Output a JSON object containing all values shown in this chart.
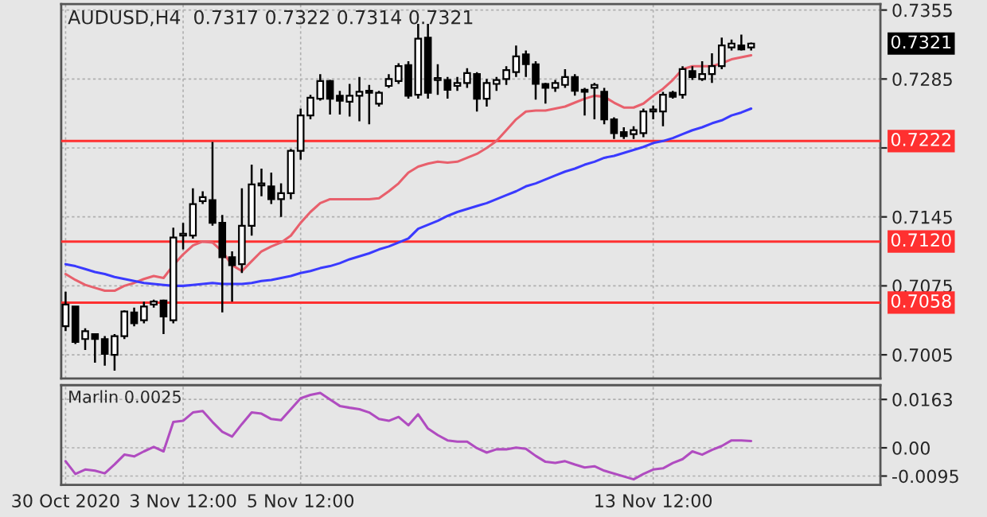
{
  "chart_data": [
    {
      "type": "candlestick",
      "title": "AUDUSD,H4  0.7317 0.7322 0.7314 0.7321",
      "categories": [
        null,
        null,
        null,
        null,
        null,
        null,
        null,
        null,
        null,
        null,
        null,
        null,
        null,
        null,
        null,
        null,
        null,
        null,
        null,
        null,
        null,
        null,
        null,
        null,
        null,
        null,
        null,
        null,
        null,
        null,
        null,
        null,
        null,
        null,
        null,
        null,
        null,
        null,
        null,
        null,
        null,
        null,
        null,
        null,
        null,
        null,
        null,
        null,
        null,
        null,
        null,
        null,
        null,
        null,
        null,
        null,
        null,
        null,
        null,
        null,
        null,
        null,
        null,
        null,
        null,
        null,
        null,
        null,
        null,
        null,
        null
      ],
      "ohlc": [
        [
          0.7034,
          0.7069,
          0.7029,
          0.7056
        ],
        [
          0.7054,
          0.7054,
          0.7016,
          0.7018
        ],
        [
          0.7021,
          0.7032,
          0.701,
          0.7029
        ],
        [
          0.7026,
          0.7026,
          0.6997,
          0.7021
        ],
        [
          0.7021,
          0.7024,
          0.6994,
          0.7006
        ],
        [
          0.7005,
          0.7026,
          0.6989,
          0.7024
        ],
        [
          0.7024,
          0.705,
          0.7021,
          0.7049
        ],
        [
          0.7048,
          0.7053,
          0.7034,
          0.7037
        ],
        [
          0.704,
          0.7059,
          0.7037,
          0.7054
        ],
        [
          0.7056,
          0.7061,
          0.7053,
          0.7059
        ],
        [
          0.706,
          0.7061,
          0.7026,
          0.7044
        ],
        [
          0.704,
          0.7134,
          0.7037,
          0.7124
        ],
        [
          0.7126,
          0.7139,
          0.7112,
          0.7128
        ],
        [
          0.7126,
          0.7174,
          0.7123,
          0.7158
        ],
        [
          0.7161,
          0.7171,
          0.7158,
          0.7165
        ],
        [
          0.7162,
          0.7221,
          0.7136,
          0.7139
        ],
        [
          0.7139,
          0.7147,
          0.7048,
          0.7104
        ],
        [
          0.7104,
          0.711,
          0.7059,
          0.7096
        ],
        [
          0.7097,
          0.7174,
          0.7088,
          0.7136
        ],
        [
          0.7136,
          0.7198,
          0.7126,
          0.7178
        ],
        [
          0.7177,
          0.7194,
          0.7166,
          0.7179
        ],
        [
          0.7176,
          0.719,
          0.7158,
          0.7163
        ],
        [
          0.7163,
          0.7179,
          0.7145,
          0.7169
        ],
        [
          0.7169,
          0.7214,
          0.7163,
          0.7212
        ],
        [
          0.7212,
          0.7255,
          0.7203,
          0.7248
        ],
        [
          0.7248,
          0.7269,
          0.7244,
          0.7266
        ],
        [
          0.7265,
          0.729,
          0.7263,
          0.7283
        ],
        [
          0.7283,
          0.7284,
          0.7249,
          0.7265
        ],
        [
          0.7268,
          0.7273,
          0.7249,
          0.7263
        ],
        [
          0.7262,
          0.728,
          0.7247,
          0.7268
        ],
        [
          0.7268,
          0.7287,
          0.7242,
          0.7272
        ],
        [
          0.7273,
          0.7279,
          0.7239,
          0.7271
        ],
        [
          0.726,
          0.7273,
          0.7257,
          0.7271
        ],
        [
          0.7278,
          0.729,
          0.7276,
          0.7285
        ],
        [
          0.7283,
          0.7301,
          0.728,
          0.7298
        ],
        [
          0.7299,
          0.7303,
          0.7265,
          0.7268
        ],
        [
          0.7269,
          0.7341,
          0.7265,
          0.7326
        ],
        [
          0.7327,
          0.7341,
          0.7265,
          0.7271
        ],
        [
          0.7284,
          0.73,
          0.7269,
          0.7286
        ],
        [
          0.7284,
          0.7287,
          0.7265,
          0.7274
        ],
        [
          0.7278,
          0.7287,
          0.7273,
          0.7281
        ],
        [
          0.7281,
          0.7296,
          0.7276,
          0.7291
        ],
        [
          0.729,
          0.7292,
          0.7252,
          0.7265
        ],
        [
          0.7265,
          0.7285,
          0.7257,
          0.7281
        ],
        [
          0.728,
          0.7287,
          0.7273,
          0.7284
        ],
        [
          0.7285,
          0.7298,
          0.7279,
          0.7294
        ],
        [
          0.7292,
          0.7319,
          0.7287,
          0.7308
        ],
        [
          0.731,
          0.7314,
          0.7287,
          0.73
        ],
        [
          0.73,
          0.7303,
          0.7264,
          0.728
        ],
        [
          0.728,
          0.7281,
          0.726,
          0.7276
        ],
        [
          0.7276,
          0.7284,
          0.7272,
          0.7281
        ],
        [
          0.7279,
          0.7295,
          0.7276,
          0.7287
        ],
        [
          0.7287,
          0.729,
          0.7268,
          0.7273
        ],
        [
          0.7274,
          0.7276,
          0.7248,
          0.7272
        ],
        [
          0.7276,
          0.7281,
          0.7244,
          0.7279
        ],
        [
          0.7272,
          0.7276,
          0.7239,
          0.7244
        ],
        [
          0.7244,
          0.7246,
          0.7224,
          0.723
        ],
        [
          0.7231,
          0.7236,
          0.7224,
          0.7227
        ],
        [
          0.7229,
          0.7237,
          0.7224,
          0.7233
        ],
        [
          0.723,
          0.7255,
          0.7226,
          0.7252
        ],
        [
          0.7252,
          0.7258,
          0.7244,
          0.7254
        ],
        [
          0.7252,
          0.7272,
          0.7237,
          0.7269
        ],
        [
          0.7271,
          0.7273,
          0.7265,
          0.7267
        ],
        [
          0.7269,
          0.7298,
          0.7265,
          0.7295
        ],
        [
          0.7293,
          0.7298,
          0.7284,
          0.7287
        ],
        [
          0.7285,
          0.7303,
          0.7283,
          0.729
        ],
        [
          0.729,
          0.7311,
          0.7281,
          0.7298
        ],
        [
          0.7298,
          0.7327,
          0.7295,
          0.7319
        ],
        [
          0.7317,
          0.7325,
          0.7314,
          0.7321
        ],
        [
          0.7319,
          0.733,
          0.7314,
          0.7315
        ],
        [
          0.7317,
          0.7322,
          0.7314,
          0.7321
        ]
      ],
      "series": [
        {
          "type": "line",
          "color": "#e8606c",
          "values": [
            0.7087,
            0.7081,
            0.7076,
            0.7073,
            0.707,
            0.707,
            0.7075,
            0.7078,
            0.7082,
            0.7085,
            0.7083,
            0.7096,
            0.7107,
            0.7116,
            0.712,
            0.7119,
            0.711,
            0.7096,
            0.709,
            0.71,
            0.711,
            0.7115,
            0.7119,
            0.7126,
            0.7139,
            0.715,
            0.7159,
            0.7163,
            0.7163,
            0.7163,
            0.7163,
            0.7163,
            0.7164,
            0.7171,
            0.7179,
            0.719,
            0.7196,
            0.7199,
            0.7201,
            0.72,
            0.7201,
            0.7205,
            0.7209,
            0.7215,
            0.7222,
            0.7233,
            0.7244,
            0.7252,
            0.7253,
            0.7253,
            0.7255,
            0.7257,
            0.7261,
            0.7265,
            0.7268,
            0.7267,
            0.7261,
            0.7256,
            0.7256,
            0.726,
            0.7268,
            0.7275,
            0.7284,
            0.7295,
            0.7298,
            0.7298,
            0.7298,
            0.7301,
            0.7305,
            0.7307,
            0.7309
          ]
        },
        {
          "type": "line",
          "color": "#3a3aff",
          "values": [
            0.7097,
            0.7095,
            0.7092,
            0.7089,
            0.7087,
            0.7084,
            0.7082,
            0.708,
            0.7078,
            0.7077,
            0.7076,
            0.7075,
            0.7075,
            0.7076,
            0.7077,
            0.7078,
            0.7077,
            0.7077,
            0.7077,
            0.7078,
            0.708,
            0.7081,
            0.7083,
            0.7085,
            0.7088,
            0.709,
            0.7093,
            0.7095,
            0.7098,
            0.7102,
            0.7105,
            0.7108,
            0.7112,
            0.7115,
            0.7119,
            0.7123,
            0.7133,
            0.7137,
            0.7141,
            0.7146,
            0.715,
            0.7153,
            0.7156,
            0.7159,
            0.7163,
            0.7167,
            0.7171,
            0.7176,
            0.7179,
            0.7183,
            0.7187,
            0.7191,
            0.7194,
            0.7198,
            0.7201,
            0.7205,
            0.7207,
            0.721,
            0.7213,
            0.7216,
            0.722,
            0.7222,
            0.7225,
            0.7229,
            0.7233,
            0.7236,
            0.724,
            0.7243,
            0.7248,
            0.7251,
            0.7255
          ]
        }
      ],
      "ylim": [
        0.6981,
        0.7361
      ],
      "yticks": [
        0.7355,
        0.7285,
        {
          "value": 0.7215,
          "label": null
        },
        0.7145,
        0.7075,
        0.7005
      ],
      "ref_lines": [
        {
          "axis": "y",
          "value": 0.7222,
          "label": "0.7222",
          "color": "#ff3030"
        },
        {
          "axis": "y",
          "value": 0.712,
          "label": "0.7120",
          "color": "#ff3030"
        },
        {
          "axis": "y",
          "value": 0.7058,
          "label": "0.7058",
          "color": "#ff3030"
        }
      ],
      "annotations": [
        "0.7321"
      ],
      "grid": true
    },
    {
      "type": "line",
      "title": "Marlin 0.0025",
      "categories": [
        "30 Oct 2020",
        null,
        null,
        null,
        null,
        null,
        null,
        null,
        null,
        null,
        null,
        null,
        "3 Nov 12:00",
        null,
        null,
        null,
        null,
        null,
        null,
        null,
        null,
        null,
        null,
        null,
        "5 Nov 12:00",
        null,
        null,
        null,
        null,
        null,
        null,
        null,
        null,
        null,
        null,
        null,
        null,
        null,
        null,
        null,
        null,
        null,
        null,
        null,
        null,
        null,
        null,
        null,
        null,
        null,
        null,
        null,
        null,
        null,
        null,
        null,
        null,
        null,
        null,
        null,
        "13 Nov 12:00",
        null,
        null,
        null,
        null,
        null,
        null,
        null,
        null,
        null,
        null
      ],
      "series": [
        {
          "color": "#b04cc0",
          "values": [
            -0.0045,
            -0.0088,
            -0.0073,
            -0.0077,
            -0.0086,
            -0.0056,
            -0.0023,
            -0.0029,
            -0.0012,
            0.0003,
            -0.0012,
            0.0087,
            0.0091,
            0.0119,
            0.0124,
            0.0087,
            0.0054,
            0.0038,
            0.008,
            0.0119,
            0.0115,
            0.0097,
            0.0093,
            0.013,
            0.0167,
            0.0178,
            0.0185,
            0.0163,
            0.0141,
            0.0135,
            0.013,
            0.0119,
            0.0097,
            0.0091,
            0.0104,
            0.0076,
            0.0113,
            0.0065,
            0.0043,
            0.0025,
            0.0021,
            0.0021,
            -0.0001,
            -0.0016,
            -0.0005,
            -0.0005,
            0.0001,
            -0.0003,
            -0.0027,
            -0.0047,
            -0.0051,
            -0.0045,
            -0.0056,
            -0.0066,
            -0.0062,
            -0.0077,
            null,
            null,
            -0.0106,
            -0.0088,
            -0.0073,
            -0.0069,
            -0.0051,
            -0.0038,
            -0.0012,
            -0.0023,
            -0.0007,
            0.0006,
            0.0025,
            0.0025,
            0.0023
          ]
        }
      ],
      "ylim": [
        -0.0125,
        0.0211
      ],
      "yticks": [
        0.0163,
        {
          "value": 0,
          "label": "0.00"
        },
        -0.0095
      ],
      "grid": true
    }
  ]
}
